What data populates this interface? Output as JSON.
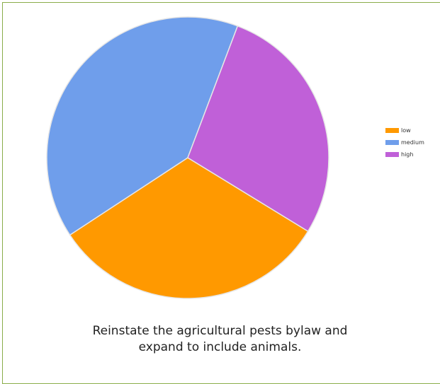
{
  "chart_data": {
    "type": "pie",
    "title": "",
    "categories": [
      "low",
      "medium",
      "high"
    ],
    "values": [
      32,
      40,
      28
    ],
    "colors": [
      "#ff9900",
      "#6f9eeb",
      "#c060d8"
    ],
    "legend_position": "right"
  },
  "caption": {
    "line1": "Reinstate the agricultural pests bylaw and",
    "line2": "expand to include animals."
  }
}
